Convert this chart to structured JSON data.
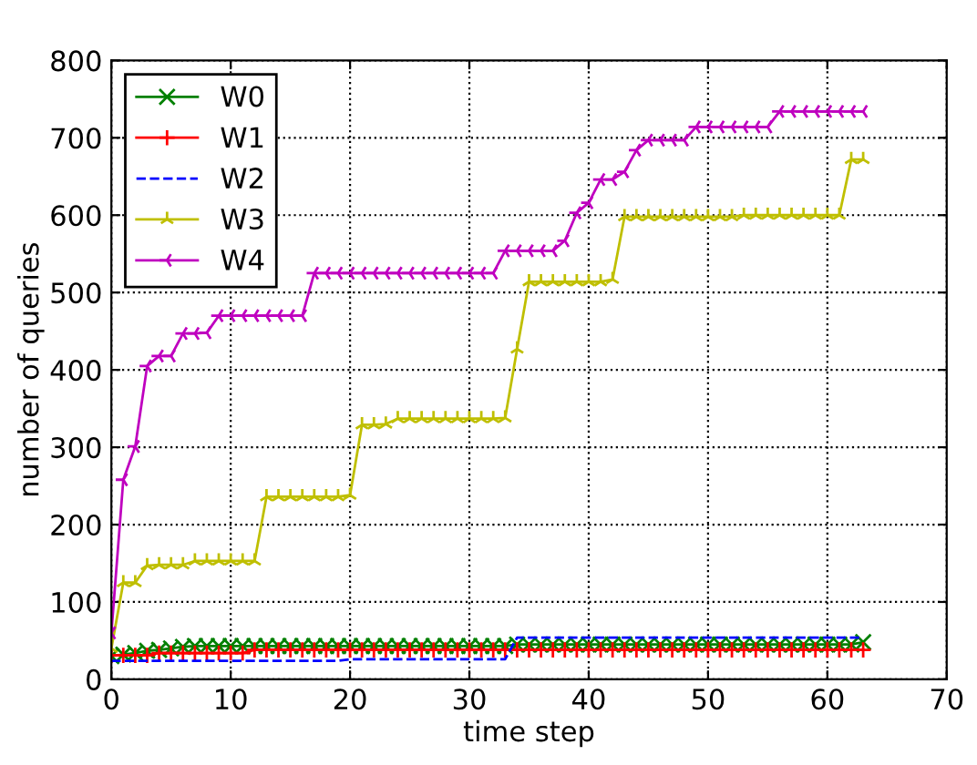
{
  "chart_data": {
    "type": "line",
    "xlabel": "time step",
    "ylabel": "number of queries",
    "x": [
      0,
      1,
      2,
      3,
      4,
      5,
      6,
      7,
      8,
      9,
      10,
      11,
      12,
      13,
      14,
      15,
      16,
      17,
      18,
      19,
      20,
      21,
      22,
      23,
      24,
      25,
      26,
      27,
      28,
      29,
      30,
      31,
      32,
      33,
      34,
      35,
      36,
      37,
      38,
      39,
      40,
      41,
      42,
      43,
      44,
      45,
      46,
      47,
      48,
      49,
      50,
      51,
      52,
      53,
      54,
      55,
      56,
      57,
      58,
      59,
      60,
      61,
      62,
      63
    ],
    "series": [
      {
        "name": "W0",
        "color": "#008000",
        "marker": "cross",
        "line_style": "solid",
        "values": [
          30,
          32,
          34,
          37,
          38,
          40,
          42,
          43,
          43,
          43,
          43,
          43,
          43,
          43,
          43,
          43,
          43,
          43,
          43,
          43,
          43,
          43,
          43,
          43,
          43,
          43,
          43,
          43,
          43,
          43,
          43,
          43,
          43,
          43,
          45,
          45,
          45,
          45,
          45,
          45,
          45,
          45,
          45,
          45,
          45,
          45,
          45,
          45,
          45,
          45,
          45,
          45,
          45,
          45,
          45,
          45,
          45,
          45,
          45,
          45,
          45,
          45,
          45,
          48
        ]
      },
      {
        "name": "W1",
        "color": "#ff0000",
        "marker": "plus",
        "line_style": "solid",
        "values": [
          31,
          31,
          31,
          31,
          34,
          34,
          34,
          34,
          34,
          34,
          34,
          34,
          38,
          38,
          38,
          38,
          38,
          38,
          38,
          38,
          38,
          38,
          38,
          38,
          38,
          38,
          38,
          38,
          38,
          38,
          38,
          38,
          38,
          38,
          38,
          38,
          38,
          38,
          38,
          38,
          38,
          38,
          38,
          38,
          38,
          38,
          38,
          38,
          38,
          38,
          38,
          38,
          38,
          38,
          38,
          38,
          38,
          38,
          38,
          38,
          38,
          38,
          38,
          38
        ]
      },
      {
        "name": "W2",
        "color": "#0000ff",
        "marker": "none",
        "line_style": "dashed",
        "values": [
          24,
          24,
          24,
          24,
          24,
          24,
          24,
          24,
          24,
          24,
          24,
          24,
          24,
          24,
          24,
          24,
          24,
          24,
          24,
          24,
          26,
          26,
          26,
          26,
          26,
          26,
          26,
          26,
          26,
          26,
          26,
          26,
          26,
          26,
          54,
          54,
          54,
          54,
          54,
          54,
          54,
          54,
          54,
          54,
          54,
          54,
          54,
          54,
          54,
          54,
          54,
          54,
          54,
          54,
          54,
          54,
          54,
          54,
          54,
          54,
          54,
          54,
          54,
          54
        ]
      },
      {
        "name": "W3",
        "color": "#bfbf00",
        "marker": "cross",
        "line_style": "solid",
        "values": [
          40,
          125,
          125,
          147,
          148,
          148,
          148,
          153,
          153,
          153,
          153,
          153,
          153,
          236,
          236,
          236,
          236,
          236,
          236,
          236,
          238,
          329,
          329,
          330,
          337,
          337,
          337,
          337,
          337,
          337,
          337,
          337,
          337,
          338,
          427,
          514,
          514,
          514,
          514,
          514,
          514,
          514,
          517,
          598,
          598,
          598,
          598,
          598,
          598,
          598,
          598,
          598,
          598,
          600,
          600,
          600,
          600,
          600,
          600,
          600,
          600,
          600,
          672,
          672
        ]
      },
      {
        "name": "W4",
        "color": "#bf00bf",
        "marker": "cross",
        "line_style": "solid",
        "values": [
          60,
          258,
          301,
          405,
          418,
          418,
          447,
          447,
          448,
          470,
          470,
          470,
          470,
          470,
          470,
          470,
          470,
          525,
          525,
          525,
          525,
          525,
          525,
          525,
          525,
          525,
          525,
          525,
          525,
          525,
          525,
          525,
          525,
          554,
          554,
          554,
          554,
          554,
          567,
          603,
          616,
          646,
          646,
          656,
          684,
          697,
          697,
          697,
          697,
          714,
          714,
          714,
          714,
          714,
          714,
          714,
          734,
          734,
          734,
          734,
          734,
          734,
          734,
          734
        ]
      }
    ],
    "xlim": [
      0,
      70
    ],
    "xticks": [
      0,
      10,
      20,
      30,
      40,
      50,
      60,
      70
    ],
    "ylim": [
      0,
      800
    ],
    "yticks": [
      0,
      100,
      200,
      300,
      400,
      500,
      600,
      700,
      800
    ],
    "grid": true,
    "legend": "top left"
  }
}
